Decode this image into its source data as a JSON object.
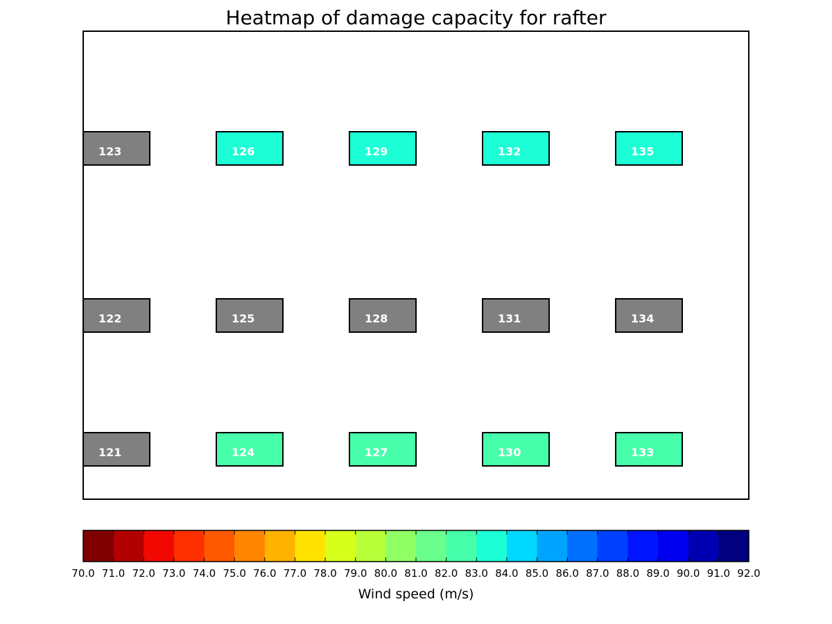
{
  "chart_data": {
    "type": "heatmap",
    "title": "Heatmap of damage capacity for rafter",
    "layout_grid": {
      "columns": 5,
      "rows": 3
    },
    "cells": [
      {
        "id": "121",
        "col": 0,
        "row": 0,
        "value": null,
        "color": "#808080"
      },
      {
        "id": "122",
        "col": 0,
        "row": 1,
        "value": null,
        "color": "#808080"
      },
      {
        "id": "123",
        "col": 0,
        "row": 2,
        "value": null,
        "color": "#808080"
      },
      {
        "id": "124",
        "col": 1,
        "row": 0,
        "value": 82.5,
        "color": "#47ffaa"
      },
      {
        "id": "125",
        "col": 1,
        "row": 1,
        "value": null,
        "color": "#808080"
      },
      {
        "id": "126",
        "col": 1,
        "row": 2,
        "value": 83.5,
        "color": "#1cffd6"
      },
      {
        "id": "127",
        "col": 2,
        "row": 0,
        "value": 82.5,
        "color": "#47ffaa"
      },
      {
        "id": "128",
        "col": 2,
        "row": 1,
        "value": null,
        "color": "#808080"
      },
      {
        "id": "129",
        "col": 2,
        "row": 2,
        "value": 83.5,
        "color": "#1cffd6"
      },
      {
        "id": "130",
        "col": 3,
        "row": 0,
        "value": 82.5,
        "color": "#47ffaa"
      },
      {
        "id": "131",
        "col": 3,
        "row": 1,
        "value": null,
        "color": "#808080"
      },
      {
        "id": "132",
        "col": 3,
        "row": 2,
        "value": 83.5,
        "color": "#1cffd6"
      },
      {
        "id": "133",
        "col": 4,
        "row": 0,
        "value": 82.5,
        "color": "#47ffaa"
      },
      {
        "id": "134",
        "col": 4,
        "row": 1,
        "value": null,
        "color": "#808080"
      },
      {
        "id": "135",
        "col": 4,
        "row": 2,
        "value": 83.5,
        "color": "#1cffd6"
      }
    ],
    "no_value_color": "#808080",
    "colorbar": {
      "label": "Wind speed (m/s)",
      "range": [
        70.0,
        92.0
      ],
      "ticks": [
        "70.0",
        "71.0",
        "72.0",
        "73.0",
        "74.0",
        "75.0",
        "76.0",
        "77.0",
        "78.0",
        "79.0",
        "80.0",
        "81.0",
        "82.0",
        "83.0",
        "84.0",
        "85.0",
        "86.0",
        "87.0",
        "88.0",
        "89.0",
        "90.0",
        "91.0",
        "92.0"
      ],
      "colors": [
        "#800000",
        "#b20000",
        "#f10800",
        "#ff3000",
        "#ff5900",
        "#ff8600",
        "#ffb200",
        "#ffe200",
        "#d6ff1c",
        "#b8ff3a",
        "#90ff64",
        "#6aff8d",
        "#47ffaa",
        "#1cffd6",
        "#00d8ff",
        "#00a4ff",
        "#0070ff",
        "#0040ff",
        "#0014ff",
        "#0000f1",
        "#0000b2",
        "#000080"
      ]
    }
  }
}
